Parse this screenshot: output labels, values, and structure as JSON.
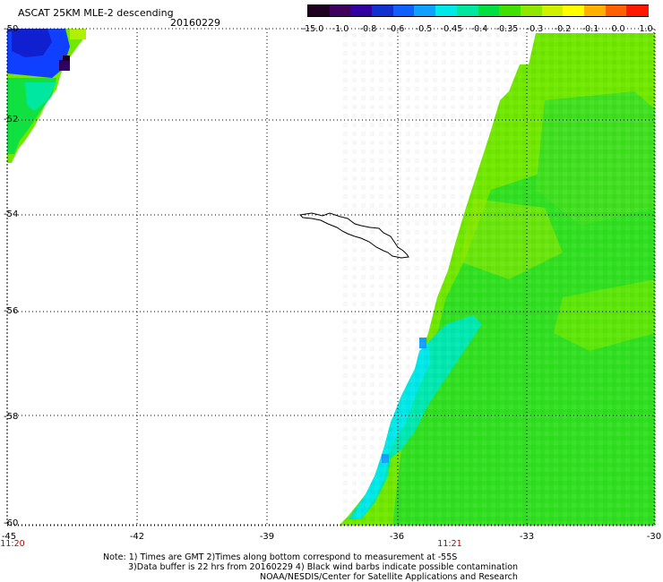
{
  "header": {
    "title": "ASCAT 25KM MLE-2 descending",
    "date": "20160229"
  },
  "colorbar": {
    "labels": [
      "-15.0",
      "-1.0",
      "-0.8",
      "-0.6",
      "-0.5",
      "-0.45",
      "-0.4",
      "-0.35",
      "-0.3",
      "-0.2",
      "-0.1",
      "0.0",
      "1.0"
    ],
    "colors": [
      "#200020",
      "#400060",
      "#3000a0",
      "#1030d0",
      "#1060ff",
      "#10a0ff",
      "#00e8e8",
      "#00e8a0",
      "#00e040",
      "#40e000",
      "#90e800",
      "#d0f000",
      "#ffff00",
      "#ffb000",
      "#ff6000",
      "#ff1800"
    ]
  },
  "axes": {
    "lat_labels": [
      "-50",
      "-52",
      "-54",
      "-56",
      "-58",
      "-60"
    ],
    "lon_labels": [
      "-45",
      "-42",
      "-39",
      "-36",
      "-33",
      "-30"
    ],
    "time_labels": [
      "11:20",
      "11:21"
    ]
  },
  "notes": {
    "line1": "Note: 1) Times are GMT 2)Times along bottom correspond to measurement at -55S",
    "line2": "3)Data buffer is 22 hrs from 20160229 4) Black wind barbs indicate possible contamination",
    "line3": "NOAA/NESDIS/Center for Satellite Applications and Research"
  },
  "legend_colors": {
    "green": "#00e040",
    "light_green": "#90e800",
    "cyan": "#00e8e8",
    "blue": "#1040ff",
    "purple": "#300060",
    "red_time": "#c00000"
  }
}
